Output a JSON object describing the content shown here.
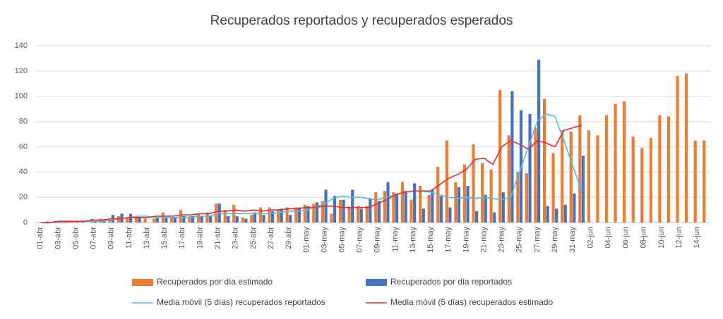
{
  "chart_data": {
    "type": "bar_line",
    "title": "Recuperados reportados y recuperados esperados",
    "categories": [
      "01-abr",
      null,
      "03-abr",
      null,
      "05-abr",
      null,
      "07-abr",
      null,
      "09-abr",
      null,
      "11-abr",
      null,
      "13-abr",
      null,
      "15-abr",
      null,
      "17-abr",
      null,
      "19-abr",
      null,
      "21-abr",
      null,
      "23-abr",
      null,
      "25-abr",
      null,
      "27-abr",
      null,
      "29-abr",
      null,
      "01-may",
      null,
      "03-may",
      null,
      "05-may",
      null,
      "07-may",
      null,
      "09-may",
      null,
      "11-may",
      null,
      "13-may",
      null,
      "15-may",
      null,
      "17-may",
      null,
      "19-may",
      null,
      "21-may",
      null,
      "23-may",
      null,
      "25-may",
      null,
      "27-may",
      null,
      "29-may",
      null,
      "31-may",
      null,
      "02-jun",
      null,
      "04-jun",
      null,
      "06-jun",
      null,
      "08-jun",
      null,
      "10-jun",
      null,
      "12-jun",
      null,
      "14-jun",
      null
    ],
    "series": [
      {
        "name": "Recuperados por día estimado",
        "kind": "bar",
        "color": "#ed7d31",
        "values": [
          0,
          1,
          1,
          1,
          1,
          1,
          3,
          3,
          2,
          5,
          4,
          5,
          3,
          3,
          8,
          4,
          10,
          5,
          7,
          8,
          15,
          10,
          14,
          4,
          6,
          12,
          12,
          10,
          12,
          12,
          14,
          15,
          17,
          7,
          18,
          12,
          13,
          13,
          24,
          25,
          24,
          32,
          18,
          29,
          22,
          44,
          65,
          32,
          46,
          62,
          47,
          42,
          105,
          69,
          40,
          39,
          75,
          98,
          55,
          73,
          72,
          85,
          73,
          69,
          85,
          94,
          96,
          68,
          59,
          67,
          85,
          84,
          116,
          118,
          65,
          65
        ]
      },
      {
        "name": "Recuperados por dia reportados",
        "kind": "bar",
        "color": "#4472c4",
        "values": [
          0,
          0,
          1,
          1,
          1,
          0,
          1,
          1,
          6,
          7,
          7,
          4,
          0,
          4,
          4,
          4,
          5,
          5,
          5,
          5,
          15,
          5,
          5,
          3,
          8,
          6,
          9,
          11,
          6,
          12,
          13,
          16,
          26,
          21,
          18,
          26,
          11,
          19,
          17,
          32,
          23,
          25,
          31,
          11,
          26,
          21,
          12,
          28,
          29,
          9,
          22,
          8,
          24,
          104,
          89,
          86,
          129,
          13,
          11,
          14,
          23,
          53,
          null,
          null,
          null,
          null,
          null,
          null,
          null,
          null,
          null,
          null,
          null,
          null,
          null,
          null
        ]
      },
      {
        "name": "Media móvil (5 días) recuperados reportados",
        "kind": "line",
        "color": "#4bbfea",
        "values": [
          0,
          0,
          0,
          0,
          1,
          1,
          1,
          1,
          2,
          3,
          4,
          5,
          5,
          4,
          4,
          4,
          4,
          4,
          5,
          5,
          7,
          7,
          7,
          7,
          7,
          7,
          7,
          8,
          9,
          9,
          10,
          12,
          15,
          19,
          21,
          20,
          20,
          19,
          18,
          20,
          22,
          24,
          25,
          25,
          24,
          22,
          20,
          19,
          20,
          19,
          20,
          19,
          18,
          20,
          40,
          60,
          80,
          86,
          84,
          65,
          45,
          25,
          null,
          null,
          null,
          null,
          null,
          null,
          null,
          null,
          null,
          null,
          null,
          null,
          null,
          null
        ]
      },
      {
        "name": "Media móvil (5 días) recuperados estimado",
        "kind": "line",
        "color": "#ee2b2b",
        "values": [
          0,
          0,
          1,
          1,
          1,
          1,
          2,
          2,
          3,
          3,
          4,
          4,
          4,
          5,
          5,
          5,
          6,
          6,
          7,
          7,
          9,
          9,
          10,
          9,
          10,
          9,
          10,
          10,
          11,
          11,
          12,
          12,
          13,
          13,
          12,
          12,
          12,
          12,
          15,
          18,
          22,
          24,
          25,
          25,
          25,
          30,
          35,
          38,
          42,
          50,
          51,
          46,
          60,
          65,
          62,
          58,
          65,
          63,
          60,
          73,
          75,
          77,
          null,
          null,
          null,
          null,
          null,
          null,
          null,
          null,
          null,
          null,
          null,
          null,
          null,
          null
        ]
      }
    ],
    "ylim": [
      0,
      140
    ],
    "yticks": [
      0,
      20,
      40,
      60,
      80,
      100,
      120,
      140
    ],
    "grid": true,
    "legend": "bottom"
  }
}
